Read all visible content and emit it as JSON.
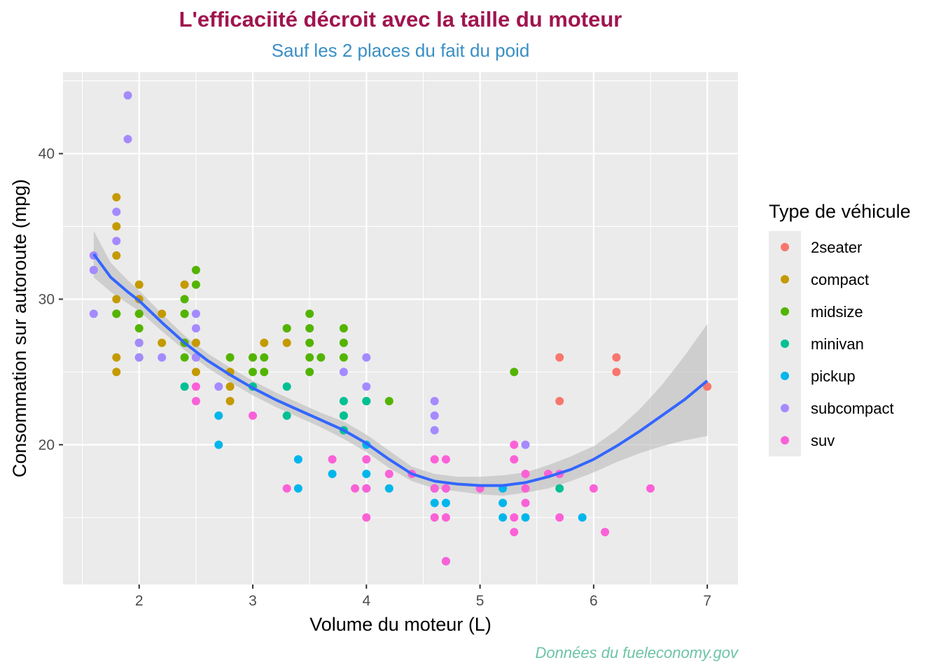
{
  "chart_data": {
    "type": "scatter",
    "title": "L'efficaciité décroit avec la taille du moteur",
    "subtitle": "Sauf les 2 places du fait du poid",
    "caption": "Données du fueleconomy.gov",
    "xlabel": "Volume du moteur (L)",
    "ylabel": "Consommation sur autoroute (mpg)",
    "xlim": [
      1.33,
      7.27
    ],
    "ylim": [
      10.4,
      45.6
    ],
    "xticks": [
      2,
      3,
      4,
      5,
      6,
      7
    ],
    "yticks": [
      20,
      30,
      40
    ],
    "grid": true,
    "legend": {
      "title": "Type de véhicule",
      "placement": "right",
      "entries": [
        {
          "name": "2seater",
          "color": "#F8766D"
        },
        {
          "name": "compact",
          "color": "#C49A00"
        },
        {
          "name": "midsize",
          "color": "#53B400"
        },
        {
          "name": "minivan",
          "color": "#00C094"
        },
        {
          "name": "pickup",
          "color": "#00B6EB"
        },
        {
          "name": "subcompact",
          "color": "#A58AFF"
        },
        {
          "name": "suv",
          "color": "#FB61D7"
        }
      ]
    },
    "colors": {
      "title": "#A0144F",
      "subtitle": "#3A8FC4",
      "caption": "#6CC4A4",
      "panel": "#EBEBEB",
      "grid": "#FFFFFF",
      "smooth_line": "#3366FF",
      "ribbon": "#BFBFBF"
    },
    "series": [
      {
        "name": "2seater",
        "points": [
          [
            5.7,
            26
          ],
          [
            5.7,
            23
          ],
          [
            6.2,
            26
          ],
          [
            6.2,
            25
          ],
          [
            7.0,
            24
          ]
        ]
      },
      {
        "name": "compact",
        "points": [
          [
            1.8,
            37
          ],
          [
            1.8,
            35
          ],
          [
            1.8,
            33
          ],
          [
            1.8,
            30
          ],
          [
            1.8,
            29
          ],
          [
            1.8,
            26
          ],
          [
            1.8,
            25
          ],
          [
            2.0,
            31
          ],
          [
            2.0,
            30
          ],
          [
            2.0,
            29
          ],
          [
            2.2,
            29
          ],
          [
            2.2,
            27
          ],
          [
            2.4,
            31
          ],
          [
            2.4,
            29
          ],
          [
            2.4,
            27
          ],
          [
            2.5,
            27
          ],
          [
            2.5,
            26
          ],
          [
            2.5,
            25
          ],
          [
            2.8,
            25
          ],
          [
            2.8,
            24
          ],
          [
            2.8,
            23
          ],
          [
            3.0,
            26
          ],
          [
            3.1,
            27
          ],
          [
            3.3,
            28
          ],
          [
            3.3,
            27
          ]
        ]
      },
      {
        "name": "midsize",
        "points": [
          [
            1.8,
            29
          ],
          [
            2.0,
            29
          ],
          [
            2.0,
            28
          ],
          [
            2.0,
            27
          ],
          [
            2.0,
            26
          ],
          [
            2.4,
            30
          ],
          [
            2.4,
            29
          ],
          [
            2.4,
            27
          ],
          [
            2.4,
            26
          ],
          [
            2.5,
            32
          ],
          [
            2.5,
            31
          ],
          [
            2.8,
            26
          ],
          [
            3.0,
            26
          ],
          [
            3.0,
            25
          ],
          [
            3.1,
            26
          ],
          [
            3.1,
            25
          ],
          [
            3.3,
            28
          ],
          [
            3.5,
            29
          ],
          [
            3.5,
            28
          ],
          [
            3.5,
            27
          ],
          [
            3.5,
            26
          ],
          [
            3.5,
            25
          ],
          [
            3.6,
            26
          ],
          [
            3.8,
            28
          ],
          [
            3.8,
            27
          ],
          [
            3.8,
            26
          ],
          [
            3.8,
            22
          ],
          [
            4.0,
            23
          ],
          [
            4.2,
            23
          ],
          [
            5.3,
            25
          ]
        ]
      },
      {
        "name": "minivan",
        "points": [
          [
            2.4,
            24
          ],
          [
            3.0,
            24
          ],
          [
            3.3,
            24
          ],
          [
            3.3,
            22
          ],
          [
            3.8,
            23
          ],
          [
            3.8,
            22
          ],
          [
            3.8,
            21
          ],
          [
            4.0,
            23
          ],
          [
            5.7,
            17
          ]
        ]
      },
      {
        "name": "pickup",
        "points": [
          [
            2.7,
            22
          ],
          [
            2.7,
            20
          ],
          [
            3.4,
            19
          ],
          [
            3.4,
            17
          ],
          [
            3.7,
            18
          ],
          [
            4.0,
            20
          ],
          [
            4.0,
            18
          ],
          [
            4.0,
            17
          ],
          [
            4.2,
            17
          ],
          [
            4.6,
            17
          ],
          [
            4.6,
            16
          ],
          [
            4.7,
            17
          ],
          [
            4.7,
            16
          ],
          [
            4.7,
            12
          ],
          [
            5.2,
            17
          ],
          [
            5.2,
            16
          ],
          [
            5.2,
            15
          ],
          [
            5.4,
            15
          ],
          [
            5.9,
            15
          ]
        ]
      },
      {
        "name": "subcompact",
        "points": [
          [
            1.6,
            33
          ],
          [
            1.6,
            32
          ],
          [
            1.6,
            29
          ],
          [
            1.8,
            36
          ],
          [
            1.8,
            34
          ],
          [
            1.9,
            44
          ],
          [
            1.9,
            41
          ],
          [
            2.0,
            27
          ],
          [
            2.0,
            26
          ],
          [
            2.2,
            26
          ],
          [
            2.5,
            29
          ],
          [
            2.5,
            28
          ],
          [
            2.5,
            26
          ],
          [
            2.7,
            24
          ],
          [
            3.8,
            25
          ],
          [
            4.0,
            26
          ],
          [
            4.0,
            24
          ],
          [
            4.6,
            23
          ],
          [
            4.6,
            22
          ],
          [
            4.6,
            21
          ],
          [
            5.4,
            20
          ]
        ]
      },
      {
        "name": "suv",
        "points": [
          [
            2.5,
            24
          ],
          [
            2.5,
            23
          ],
          [
            3.0,
            22
          ],
          [
            3.3,
            17
          ],
          [
            3.7,
            19
          ],
          [
            3.9,
            17
          ],
          [
            4.0,
            19
          ],
          [
            4.0,
            17
          ],
          [
            4.0,
            15
          ],
          [
            4.2,
            18
          ],
          [
            4.4,
            18
          ],
          [
            4.6,
            19
          ],
          [
            4.6,
            17
          ],
          [
            4.6,
            15
          ],
          [
            4.7,
            19
          ],
          [
            4.7,
            17
          ],
          [
            4.7,
            15
          ],
          [
            4.7,
            12
          ],
          [
            5.0,
            17
          ],
          [
            5.3,
            20
          ],
          [
            5.3,
            19
          ],
          [
            5.3,
            15
          ],
          [
            5.3,
            14
          ],
          [
            5.4,
            18
          ],
          [
            5.4,
            17
          ],
          [
            5.4,
            16
          ],
          [
            5.6,
            18
          ],
          [
            5.7,
            18
          ],
          [
            5.7,
            15
          ],
          [
            6.0,
            17
          ],
          [
            6.1,
            14
          ],
          [
            6.5,
            17
          ]
        ]
      }
    ],
    "smooth": {
      "x": [
        1.6,
        1.75,
        1.9,
        2.0,
        2.2,
        2.4,
        2.6,
        2.8,
        3.0,
        3.2,
        3.4,
        3.6,
        3.8,
        4.0,
        4.2,
        4.4,
        4.6,
        4.8,
        5.0,
        5.2,
        5.4,
        5.6,
        5.8,
        6.0,
        6.2,
        6.4,
        6.6,
        6.8,
        7.0
      ],
      "y": [
        33.1,
        31.5,
        30.5,
        29.9,
        28.4,
        27.0,
        25.8,
        24.8,
        23.9,
        23.1,
        22.4,
        21.7,
        21.0,
        20.1,
        19.0,
        18.0,
        17.5,
        17.3,
        17.2,
        17.2,
        17.4,
        17.8,
        18.3,
        19.0,
        19.9,
        20.9,
        22.0,
        23.1,
        24.4
      ],
      "lower": [
        31.5,
        30.5,
        29.7,
        29.2,
        27.8,
        26.5,
        25.3,
        24.3,
        23.4,
        22.6,
        21.9,
        21.2,
        20.4,
        19.5,
        18.4,
        17.5,
        17.0,
        16.8,
        16.6,
        16.5,
        16.7,
        17.0,
        17.5,
        18.1,
        18.8,
        19.4,
        19.9,
        20.3,
        20.6
      ],
      "upper": [
        34.7,
        32.5,
        31.3,
        30.6,
        29.0,
        27.5,
        26.3,
        25.3,
        24.4,
        23.6,
        22.9,
        22.2,
        21.6,
        20.7,
        19.6,
        18.5,
        18.0,
        17.8,
        17.8,
        17.9,
        18.1,
        18.6,
        19.2,
        19.9,
        21.0,
        22.4,
        24.1,
        26.1,
        28.3
      ]
    }
  }
}
